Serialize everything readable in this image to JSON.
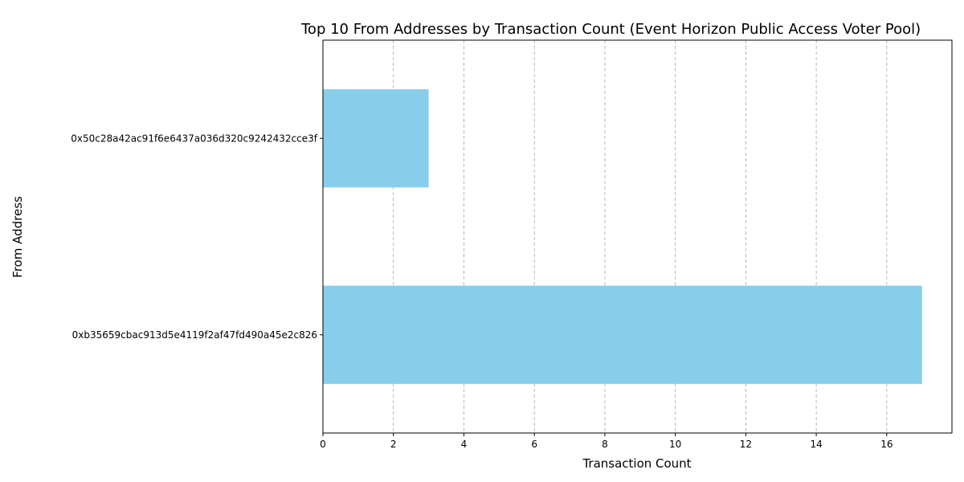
{
  "chart_data": {
    "type": "bar",
    "orientation": "horizontal",
    "title": "Top 10 From Addresses by Transaction Count (Event Horizon Public Access Voter Pool)",
    "xlabel": "Transaction Count",
    "ylabel": "From Address",
    "categories": [
      "0xb35659cbac913d5e4119f2af47fd490a45e2c826",
      "0x50c28a42ac91f6e6437a036d320c9242432cce3f"
    ],
    "values": [
      17,
      3
    ],
    "xlim": [
      0,
      17.85
    ],
    "xticks": [
      0,
      2,
      4,
      6,
      8,
      10,
      12,
      14,
      16
    ],
    "grid": "x-dashed",
    "bar_color": "#87ceeb",
    "grid_color": "#b0b0b0"
  }
}
